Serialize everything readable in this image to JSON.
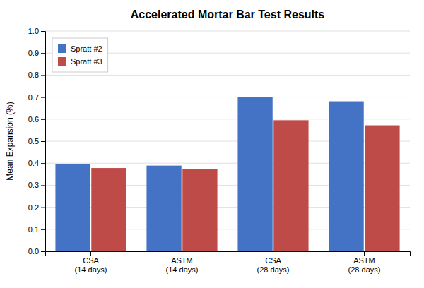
{
  "chart_data": {
    "type": "bar",
    "title": "Accelerated Mortar Bar Test Results",
    "ylabel": "Mean Expansion (%)",
    "categories": [
      "CSA\n(14 days)",
      "ASTM\n(14 days)",
      "CSA\n(28 days)",
      "ASTM\n(28 days)"
    ],
    "series": [
      {
        "name": "Spratt #2",
        "color": "#4472C4",
        "values": [
          0.397,
          0.389,
          0.701,
          0.681
        ]
      },
      {
        "name": "Spratt #3",
        "color": "#BE4B48",
        "values": [
          0.378,
          0.375,
          0.595,
          0.572
        ]
      }
    ],
    "ylim": [
      0,
      1.0
    ],
    "yticks": [
      {
        "value": 0,
        "label": "0.0"
      },
      0.1,
      0.2,
      0.3,
      0.4,
      0.5,
      0.6,
      0.7,
      0.8,
      0.9,
      {
        "value": 1.0,
        "label": "1.0"
      }
    ],
    "grid": true,
    "legend": "upper left"
  }
}
